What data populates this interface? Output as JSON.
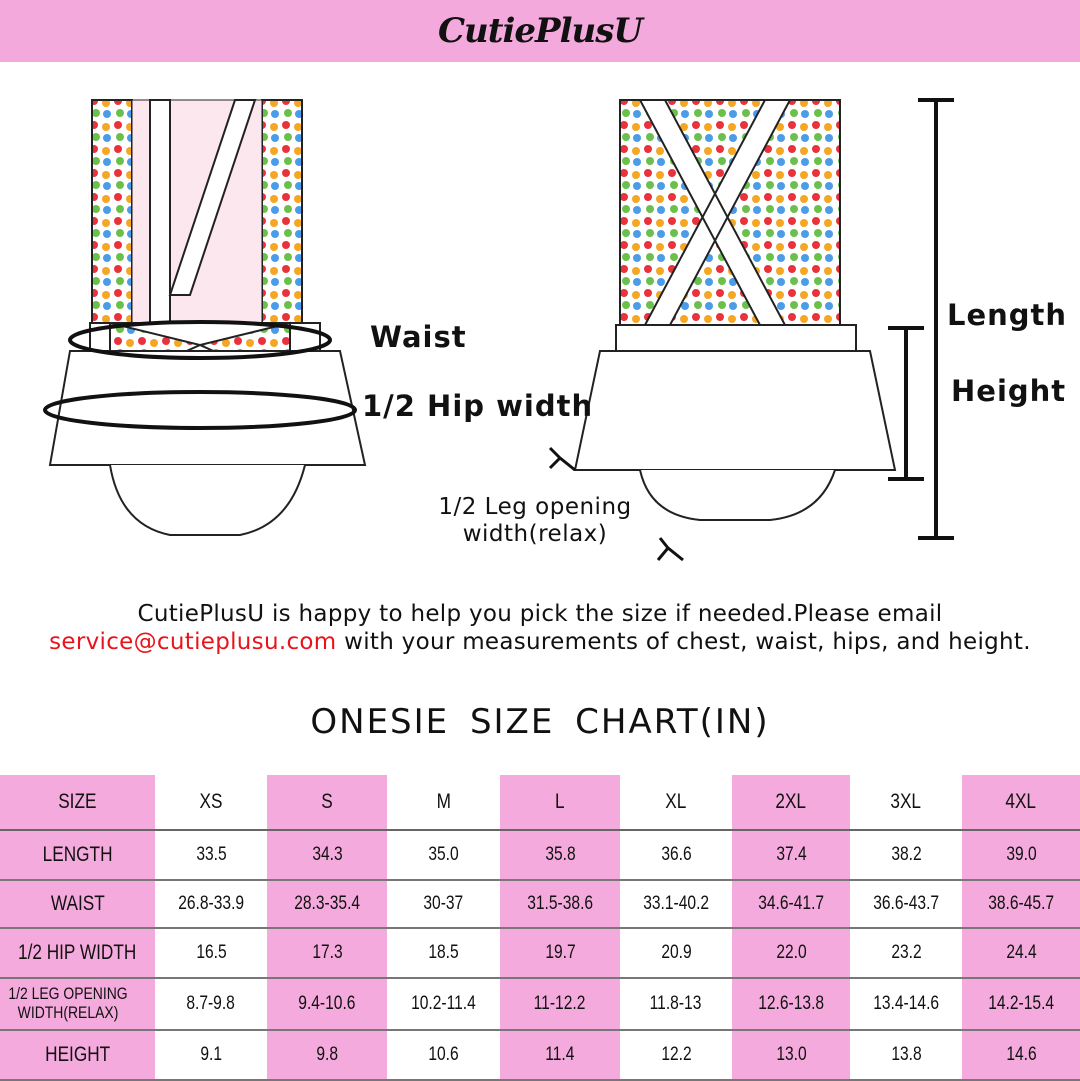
{
  "brand": {
    "logo_text": "CutiePlusU",
    "banner_color": "#f4a9dc"
  },
  "diagram": {
    "labels": {
      "waist": "Waist",
      "hip": "1/2 Hip width",
      "length": "Length",
      "height": "Height",
      "leg_line1": "1/2 Leg opening",
      "leg_line2": "width(relax)"
    }
  },
  "note": {
    "line1": "CutiePlusU is happy to help you pick the size if needed.Please email",
    "email": "service@cutieplusu.com",
    "line2_rest": " with your measurements of chest, waist, hips, and height."
  },
  "chart_title": "ONESIE  SIZE  CHART(IN)",
  "table": {
    "headers": [
      "SIZE",
      "XS",
      "S",
      "M",
      "L",
      "XL",
      "2XL",
      "3XL",
      "4XL"
    ],
    "rows": [
      {
        "label": "LENGTH",
        "values": [
          "33.5",
          "34.3",
          "35.0",
          "35.8",
          "36.6",
          "37.4",
          "38.2",
          "39.0"
        ]
      },
      {
        "label": "WAIST",
        "values": [
          "26.8-33.9",
          "28.3-35.4",
          "30-37",
          "31.5-38.6",
          "33.1-40.2",
          "34.6-41.7",
          "36.6-43.7",
          "38.6-45.7"
        ]
      },
      {
        "label": "1/2 HIP WIDTH",
        "values": [
          "16.5",
          "17.3",
          "18.5",
          "19.7",
          "20.9",
          "22.0",
          "23.2",
          "24.4"
        ]
      },
      {
        "label": "1/2 LEG OPENING WIDTH(RELAX)",
        "values": [
          "8.7-9.8",
          "9.4-10.6",
          "10.2-11.4",
          "11-12.2",
          "11.8-13",
          "12.6-13.8",
          "13.4-14.6",
          "14.2-15.4"
        ]
      },
      {
        "label": "HEIGHT",
        "values": [
          "9.1",
          "9.8",
          "10.6",
          "11.4",
          "12.2",
          "13.0",
          "13.8",
          "14.6"
        ]
      }
    ],
    "highlight_color": "#f4aadc"
  }
}
